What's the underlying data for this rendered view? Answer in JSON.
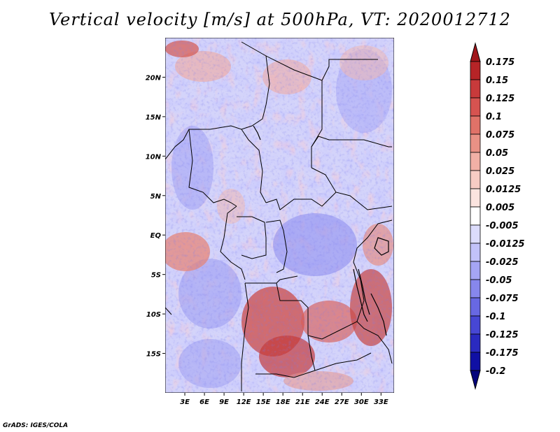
{
  "title": "Vertical velocity [m/s] at 500hPa, VT: 2020012712",
  "footer": "GrADS: IGES/COLA",
  "map": {
    "lon_range": [
      0,
      35
    ],
    "lat_range": [
      -20,
      25
    ],
    "lat_labels": [
      {
        "value": 20,
        "text": "20N"
      },
      {
        "value": 15,
        "text": "15N"
      },
      {
        "value": 10,
        "text": "10N"
      },
      {
        "value": 5,
        "text": "5N"
      },
      {
        "value": 0,
        "text": "EQ"
      },
      {
        "value": -5,
        "text": "5S"
      },
      {
        "value": -10,
        "text": "10S"
      },
      {
        "value": -15,
        "text": "15S"
      }
    ],
    "lon_labels": [
      {
        "value": 3,
        "text": "3E"
      },
      {
        "value": 6,
        "text": "6E"
      },
      {
        "value": 9,
        "text": "9E"
      },
      {
        "value": 12,
        "text": "12E"
      },
      {
        "value": 15,
        "text": "15E"
      },
      {
        "value": 18,
        "text": "18E"
      },
      {
        "value": 21,
        "text": "21E"
      },
      {
        "value": 24,
        "text": "24E"
      },
      {
        "value": 27,
        "text": "27E"
      },
      {
        "value": 30,
        "text": "30E"
      },
      {
        "value": 33,
        "text": "33E"
      }
    ]
  },
  "colorbar": {
    "levels": [
      "0.175",
      "0.15",
      "0.125",
      "0.1",
      "0.075",
      "0.05",
      "0.025",
      "0.0125",
      "0.005",
      "-0.005",
      "-0.0125",
      "-0.025",
      "-0.05",
      "-0.075",
      "-0.1",
      "-0.125",
      "-0.175",
      "-0.2"
    ],
    "colors": [
      "#a0161a",
      "#b62427",
      "#c83a3b",
      "#d65350",
      "#e07268",
      "#e99185",
      "#f1b0a6",
      "#f7ccc4",
      "#fbe4df",
      "#ffffff",
      "#dcdcfc",
      "#c2c2f9",
      "#a5a5f4",
      "#8787ec",
      "#6868e2",
      "#4747d4",
      "#2a2ac0",
      "#1010a4",
      "#04047c"
    ]
  }
}
